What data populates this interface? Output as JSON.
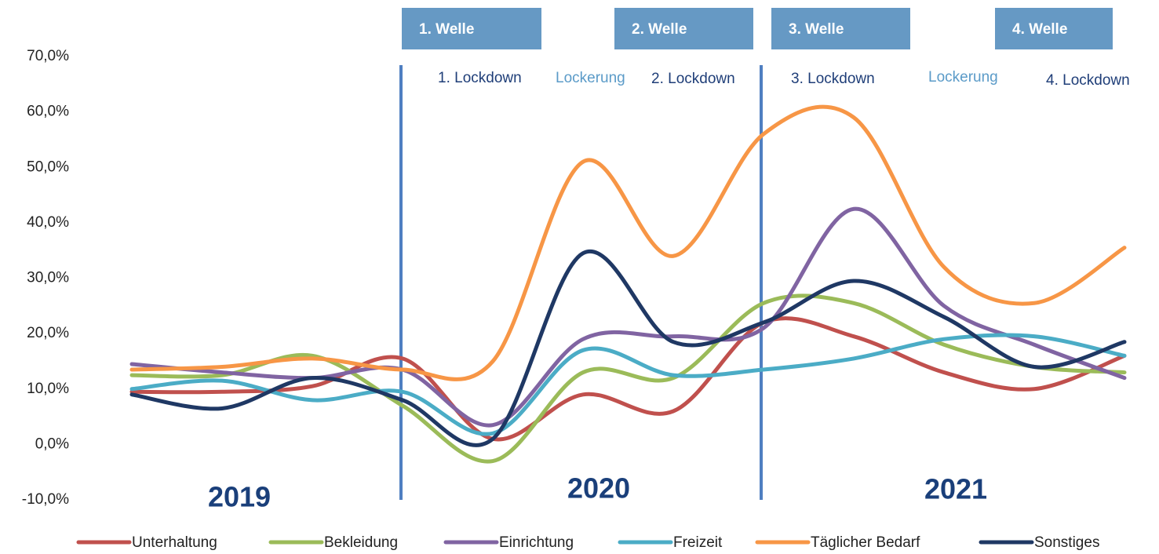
{
  "chart_data": {
    "type": "line",
    "categories": [
      null,
      null,
      null,
      null,
      null,
      null,
      null,
      null,
      null,
      null,
      null,
      null
    ],
    "series": [
      {
        "name": "Unterhaltung",
        "color": "#c0504d",
        "values": [
          9.5,
          9.5,
          10.5,
          15.5,
          1,
          9,
          6,
          22,
          19.5,
          13,
          10,
          16
        ]
      },
      {
        "name": "Bekleidung",
        "color": "#9bbb59",
        "values": [
          12.5,
          12.5,
          16,
          7,
          -3,
          13,
          12,
          25.5,
          25.5,
          18,
          14,
          13
        ]
      },
      {
        "name": "Einrichtung",
        "color": "#8064a2",
        "values": [
          14.5,
          13,
          12,
          13.5,
          3.5,
          19,
          19.5,
          21,
          42.5,
          25,
          18,
          12
        ]
      },
      {
        "name": "Freizeit",
        "color": "#4bacc6",
        "values": [
          10,
          11.5,
          8,
          9.5,
          2,
          17,
          12.5,
          13.5,
          15.5,
          19,
          19.5,
          16
        ]
      },
      {
        "name": "Täglicher Bedarf",
        "color": "#f79646",
        "values": [
          13.5,
          14,
          15.5,
          13.5,
          15,
          51,
          34,
          56,
          59,
          32,
          25.5,
          35.5
        ]
      },
      {
        "name": "Sonstiges",
        "color": "#1f3864",
        "values": [
          9,
          6.5,
          12,
          8,
          1,
          34.5,
          18.5,
          22,
          29.5,
          23,
          14,
          18.5
        ]
      }
    ],
    "ylim": [
      -10,
      70
    ],
    "yticks": [
      {
        "value": -10,
        "label": "-10,0%"
      },
      {
        "value": 0,
        "label": "0,0%"
      },
      {
        "value": 10,
        "label": "10,0%"
      },
      {
        "value": 20,
        "label": "20,0%"
      },
      {
        "value": 30,
        "label": "30,0%"
      },
      {
        "value": 40,
        "label": "40,0%"
      },
      {
        "value": 50,
        "label": "50,0%"
      },
      {
        "value": 60,
        "label": "60,0%"
      },
      {
        "value": 70,
        "label": "70,0%"
      }
    ],
    "grid": false,
    "legend": "bottom",
    "annotations": {
      "waves": [
        "1. Welle",
        "2. Welle",
        "3. Welle",
        "4. Welle"
      ],
      "phases": [
        "1. Lockdown",
        "Lockerung",
        "2. Lockdown",
        "3. Lockdown",
        "Lockerung",
        "4. Lockdown"
      ],
      "years": [
        "2019",
        "2020",
        "2021"
      ]
    }
  }
}
